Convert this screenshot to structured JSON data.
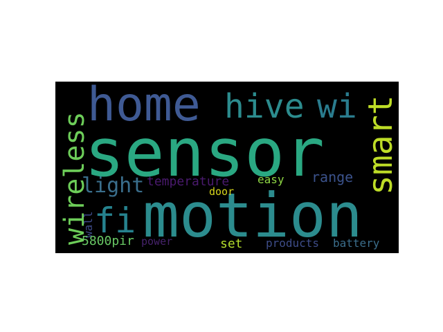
{
  "word_cloud": {
    "background": "#000000",
    "words": [
      {
        "text": "sensor",
        "color": "#2aa882"
      },
      {
        "text": "motion",
        "color": "#2c8c8e"
      },
      {
        "text": "home",
        "color": "#3f5a94"
      },
      {
        "text": "hive",
        "color": "#2c8c8e"
      },
      {
        "text": "wi",
        "color": "#2a7c8e"
      },
      {
        "text": "smart",
        "color": "#bedd27"
      },
      {
        "text": "wireless",
        "color": "#6dcd59"
      },
      {
        "text": "light",
        "color": "#3a6e8c"
      },
      {
        "text": "fi",
        "color": "#26828e"
      },
      {
        "text": "temperature",
        "color": "#4a1a6e"
      },
      {
        "text": "easy",
        "color": "#8fd744"
      },
      {
        "text": "range",
        "color": "#3b528b"
      },
      {
        "text": "door",
        "color": "#d7d51b"
      },
      {
        "text": "wall",
        "color": "#3e4a89"
      },
      {
        "text": "5800pir",
        "color": "#69c965"
      },
      {
        "text": "power",
        "color": "#46226b"
      },
      {
        "text": "set",
        "color": "#b4de2c"
      },
      {
        "text": "products",
        "color": "#3e4d89"
      },
      {
        "text": "battery",
        "color": "#3b6e8c"
      }
    ]
  }
}
